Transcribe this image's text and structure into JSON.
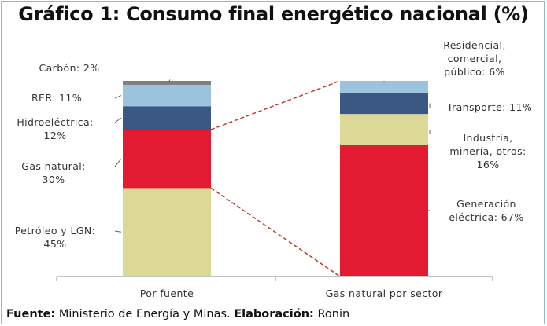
{
  "title": "Gráfico 1: Consumo final energético nacional (%)",
  "source": {
    "fuente_label": "Fuente:",
    "fuente_text": " Ministerio de Energía y Minas. ",
    "elaboracion_label": "Elaboración:",
    "elaboracion_text": " Ronin"
  },
  "chart_data": {
    "type": "bar",
    "stacked": true,
    "title": "Gráfico 1: Consumo final energético nacional (%)",
    "categories": [
      "Por fuente",
      "Gas natural por sector"
    ],
    "ylim": [
      0,
      100
    ],
    "grid": false,
    "legend": "none",
    "bars": [
      {
        "category": "Por fuente",
        "label_side": "left",
        "segments": [
          {
            "name": "Petróleo y LGN",
            "value": 45,
            "color": "#dcd996",
            "label": [
              "Petróleo y LGN:",
              "45%"
            ]
          },
          {
            "name": "Gas natural",
            "value": 30,
            "color": "#e31b32",
            "label": [
              "Gas natural:",
              "30%"
            ]
          },
          {
            "name": "Hidroeléctrica",
            "value": 12,
            "color": "#3a5883",
            "label": [
              "Hidroeléctrica:",
              "12%"
            ]
          },
          {
            "name": "RER",
            "value": 11,
            "color": "#9cc3dd",
            "label": [
              "RER: 11%"
            ]
          },
          {
            "name": "Carbón",
            "value": 2,
            "color": "#7f7f7f",
            "label": [
              "Carbón: 2%"
            ]
          }
        ]
      },
      {
        "category": "Gas natural por sector",
        "label_side": "right",
        "segments": [
          {
            "name": "Generación eléctrica",
            "value": 67,
            "color": "#e31b32",
            "label": [
              "Generación",
              "eléctrica: 67%"
            ]
          },
          {
            "name": "Industria, minería, otros",
            "value": 16,
            "color": "#dcd996",
            "label": [
              "Industria,",
              "minería, otros:",
              "16%"
            ]
          },
          {
            "name": "Transporte",
            "value": 11,
            "color": "#3a5883",
            "label": [
              "Transporte: 11%"
            ]
          },
          {
            "name": "Residencial, comercial, público",
            "value": 6,
            "color": "#9cc3dd",
            "label": [
              "Residencial,",
              "comercial,",
              "público: 6%"
            ]
          }
        ]
      }
    ],
    "connector": {
      "from": "Gas natural",
      "to": "Gas natural por sector",
      "color": "#c0392b"
    }
  }
}
